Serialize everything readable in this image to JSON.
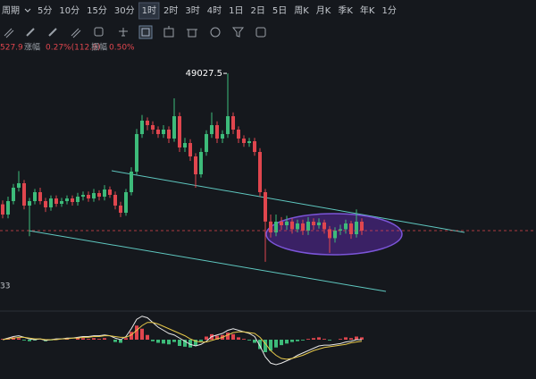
{
  "toolbar": {
    "period_label": "周期",
    "intervals": [
      "5分",
      "10分",
      "15分",
      "30分",
      "1时",
      "2时",
      "3时",
      "4时",
      "1日",
      "2日",
      "5日",
      "周K",
      "月K",
      "季K",
      "年K",
      "1分"
    ],
    "active_index": 4
  },
  "info": {
    "price": "527.9",
    "change_label": "涨幅",
    "change": "0.27%(112.9)",
    "amplitude_label": "振幅",
    "amplitude": "0.50%"
  },
  "left_label": "33",
  "chart_data": [
    {
      "type": "candlestick",
      "up_color": "#3dbb7a",
      "down_color": "#e0464e",
      "ylim": [
        40000,
        50500
      ],
      "open": [
        43900,
        43500,
        44025,
        44550,
        44725,
        43850,
        44025,
        44375,
        44025,
        43780,
        44130,
        43920,
        44025,
        44130,
        43990,
        44200,
        44270,
        44130,
        44340,
        44200,
        44480,
        44270,
        43850,
        43570,
        44375,
        45180,
        46650,
        47175,
        47000,
        46825,
        46650,
        46825,
        46475,
        47350,
        46125,
        46300,
        45775,
        45075,
        45950,
        46650,
        47000,
        46475,
        46650,
        47350,
        46825,
        46475,
        46300,
        46370,
        45950,
        44375,
        43225,
        42800,
        43220,
        43080,
        43225,
        42925,
        43150,
        42870,
        43220,
        43080,
        43190,
        42925,
        42575,
        42870,
        42925,
        43150,
        42730,
        43220
      ],
      "high": [
        44050,
        44200,
        44700,
        45200,
        44850,
        44150,
        44500,
        44550,
        44150,
        44250,
        44250,
        44150,
        44250,
        44250,
        44350,
        44400,
        44400,
        44500,
        44450,
        44650,
        44600,
        44400,
        44000,
        44500,
        45350,
        46850,
        47400,
        47300,
        47150,
        46950,
        47000,
        46950,
        48050,
        47500,
        46500,
        46450,
        45900,
        46100,
        46800,
        47500,
        47150,
        46800,
        49027.5,
        47500,
        46950,
        46600,
        46500,
        46500,
        46100,
        44500,
        43500,
        43500,
        43400,
        43450,
        43350,
        43300,
        43300,
        43400,
        43350,
        43350,
        43300,
        43050,
        43000,
        43100,
        43300,
        43250,
        43700,
        43350
      ],
      "low": [
        43350,
        43350,
        43900,
        44400,
        43700,
        42650,
        43900,
        43900,
        43600,
        43650,
        43800,
        43800,
        43900,
        43850,
        43850,
        44050,
        44000,
        44000,
        44050,
        44050,
        44150,
        43700,
        43400,
        43450,
        44250,
        45050,
        46500,
        46800,
        46650,
        46500,
        46500,
        46300,
        46350,
        45950,
        45950,
        45600,
        44550,
        44950,
        45800,
        46500,
        46300,
        46300,
        46500,
        46650,
        46300,
        46150,
        46150,
        45800,
        44200,
        41650,
        42600,
        42650,
        42900,
        42900,
        42750,
        42800,
        42700,
        42700,
        42900,
        42950,
        42750,
        42000,
        42400,
        42700,
        42750,
        42550,
        42600,
        42700
      ],
      "close": [
        43500,
        44025,
        44550,
        44725,
        43850,
        44025,
        44375,
        44025,
        43780,
        44130,
        43920,
        44025,
        44130,
        43990,
        44200,
        44270,
        44130,
        44340,
        44200,
        44480,
        44270,
        43850,
        43570,
        44375,
        45180,
        46650,
        47175,
        47000,
        46825,
        46650,
        46825,
        46475,
        47350,
        46125,
        46300,
        45775,
        45075,
        45950,
        46650,
        47000,
        46475,
        46650,
        47350,
        46825,
        46475,
        46300,
        46370,
        45950,
        44375,
        43225,
        42800,
        43220,
        43080,
        43225,
        42925,
        43150,
        42870,
        43220,
        43080,
        43190,
        42925,
        42575,
        42870,
        42925,
        43150,
        42730,
        43220,
        42870
      ]
    },
    {
      "type": "macd",
      "ylim": [
        -40,
        40
      ],
      "up_color": "#3dbb7a",
      "down_color": "#e0464e",
      "dif_color": "#e8e8e8",
      "dea_color": "#e6c84a",
      "histogram": [
        1,
        2,
        3,
        2,
        -1,
        -2,
        -1,
        0,
        -2,
        -1,
        1,
        0,
        1,
        0,
        2,
        2,
        1,
        2,
        1,
        2,
        0,
        -3,
        -4,
        2,
        10,
        18,
        14,
        6,
        -2,
        -4,
        -5,
        -6,
        -3,
        -8,
        -9,
        -10,
        -8,
        -2,
        4,
        7,
        5,
        6,
        9,
        7,
        3,
        1,
        -1,
        -4,
        -12,
        -16,
        -14,
        -10,
        -7,
        -5,
        -3,
        -2,
        -1,
        1,
        2,
        3,
        1,
        -1,
        0,
        1,
        3,
        2,
        4,
        3
      ],
      "dif": [
        0,
        2,
        4,
        5,
        3,
        1,
        0,
        1,
        -1,
        0,
        1,
        1,
        2,
        2,
        3,
        4,
        4,
        5,
        5,
        6,
        5,
        2,
        0,
        4,
        14,
        26,
        30,
        28,
        22,
        16,
        12,
        8,
        6,
        2,
        -2,
        -6,
        -8,
        -6,
        -2,
        4,
        6,
        8,
        12,
        14,
        12,
        10,
        8,
        4,
        -8,
        -22,
        -30,
        -32,
        -30,
        -27,
        -24,
        -20,
        -17,
        -14,
        -11,
        -8,
        -7,
        -7,
        -6,
        -5,
        -3,
        -2,
        0,
        0
      ],
      "dea": [
        0,
        1,
        2,
        3,
        3,
        2,
        1,
        1,
        0,
        0,
        0,
        1,
        1,
        2,
        2,
        3,
        3,
        4,
        4,
        5,
        5,
        4,
        3,
        3,
        6,
        12,
        18,
        22,
        22,
        20,
        17,
        14,
        11,
        8,
        5,
        1,
        -2,
        -3,
        -3,
        -1,
        1,
        3,
        6,
        9,
        10,
        10,
        9,
        8,
        3,
        -5,
        -14,
        -20,
        -24,
        -25,
        -24,
        -22,
        -20,
        -17,
        -14,
        -12,
        -10,
        -9,
        -8,
        -7,
        -6,
        -4,
        -3,
        -2
      ]
    }
  ]
}
